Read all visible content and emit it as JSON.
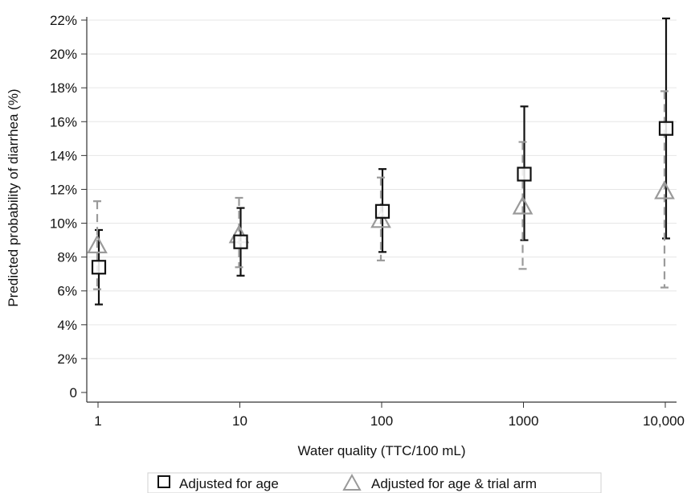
{
  "chart_data": {
    "type": "scatter",
    "xlabel": "Water quality (TTC/100 mL)",
    "ylabel": "Predicted probability of diarrhea (%)",
    "x_scale": "log",
    "categories": [
      "1",
      "10",
      "100",
      "1000",
      "10,000"
    ],
    "x": [
      1,
      10,
      100,
      1000,
      10000
    ],
    "ylim": [
      0,
      22
    ],
    "y_ticks": [
      0,
      2,
      4,
      6,
      8,
      10,
      12,
      14,
      16,
      18,
      20,
      22
    ],
    "y_tick_labels": [
      "0",
      "2%",
      "4%",
      "6%",
      "8%",
      "10%",
      "12%",
      "14%",
      "16%",
      "18%",
      "20%",
      "22%"
    ],
    "grid": true,
    "legend_position": "bottom",
    "series": [
      {
        "name": "Adjusted for age",
        "marker": "square",
        "color": "#111111",
        "line_style": "solid",
        "values": [
          7.4,
          8.9,
          10.7,
          12.9,
          15.6
        ],
        "lower": [
          5.2,
          6.9,
          8.3,
          9.0,
          9.1
        ],
        "upper": [
          9.6,
          10.9,
          13.2,
          16.9,
          22.1
        ]
      },
      {
        "name": "Adjusted for age & trial arm",
        "marker": "triangle",
        "color": "#9a9a9a",
        "line_style": "dashed",
        "values": [
          8.7,
          9.3,
          10.2,
          11.0,
          11.9
        ],
        "lower": [
          6.1,
          7.4,
          7.8,
          7.3,
          6.2
        ],
        "upper": [
          11.3,
          11.5,
          12.7,
          14.8,
          17.8
        ]
      }
    ]
  }
}
